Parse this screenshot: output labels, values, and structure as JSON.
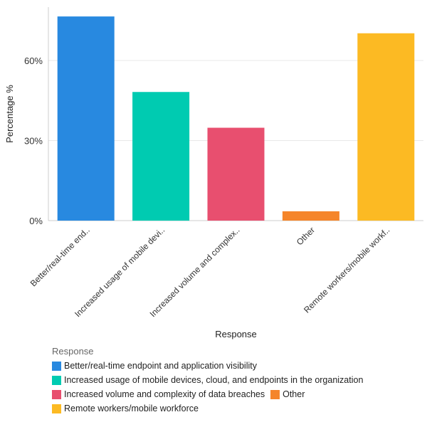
{
  "chart_data": {
    "type": "bar",
    "categories": [
      "Better/real-time end..",
      "Increased usage of mobile devi..",
      "Increased volume and complex..",
      "Other",
      "Remote workers/mobile workf.."
    ],
    "values": [
      76.5,
      48.2,
      34.8,
      3.5,
      70.2
    ],
    "colors": [
      "#2889e0",
      "#00cbb1",
      "#e84f6f",
      "#f5852a",
      "#fcba23"
    ],
    "xlabel": "Response",
    "ylabel": "Percentage %",
    "ylim": [
      0,
      80
    ],
    "yticks": [
      0,
      30,
      60
    ],
    "ytick_labels": [
      "0%",
      "30%",
      "60%"
    ],
    "grid": true,
    "legend": {
      "title": "Response",
      "placement": "bottom",
      "entries": [
        "Better/real-time endpoint and application visibility",
        "Increased usage of mobile devices, cloud, and endpoints in the organization",
        "Increased volume and complexity of data breaches",
        "Other",
        "Remote workers/mobile workforce"
      ]
    }
  }
}
